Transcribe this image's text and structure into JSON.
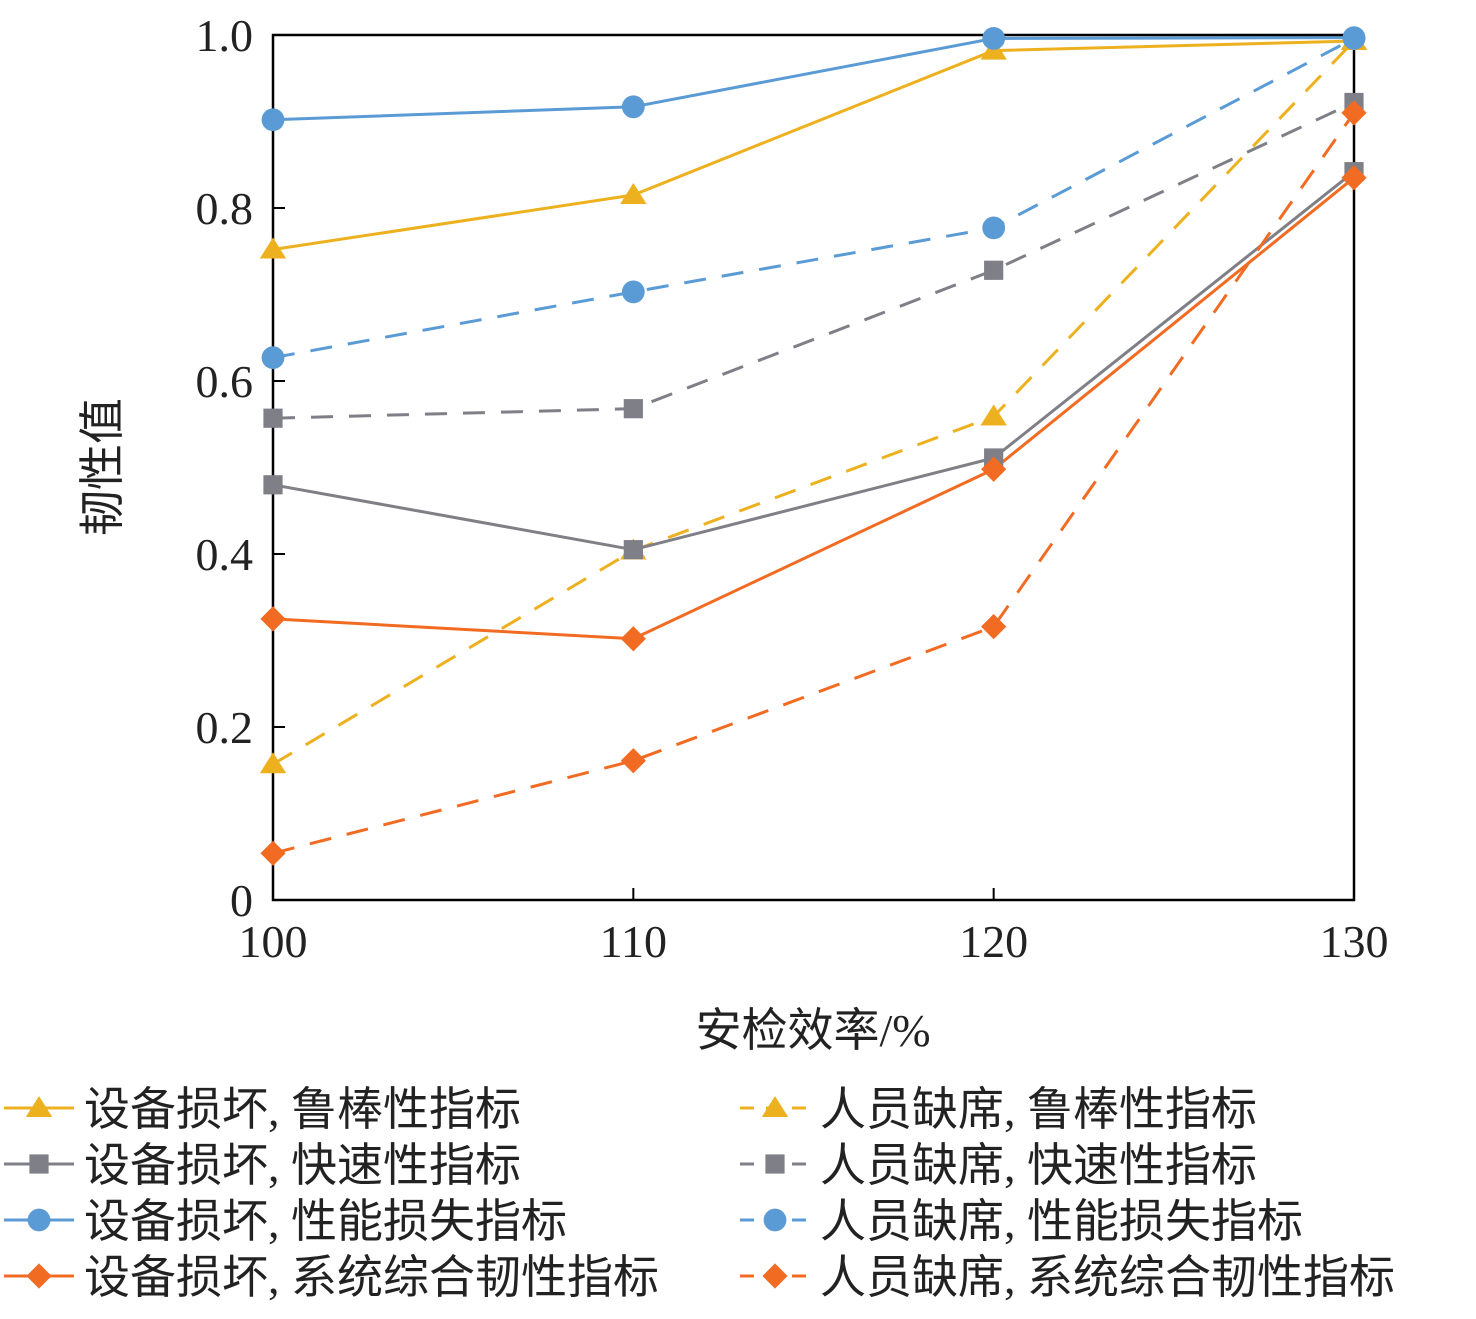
{
  "chart_data": {
    "type": "line",
    "xlabel": "安检效率/%",
    "ylabel": "韧性值",
    "x": [
      100,
      110,
      120,
      130
    ],
    "x_ticks": [
      "100",
      "110",
      "120",
      "130"
    ],
    "xlim": [
      100,
      130
    ],
    "ylim": [
      0,
      1.0
    ],
    "y_ticks": [
      "0",
      "0.2",
      "0.4",
      "0.6",
      "0.8",
      "1.0"
    ],
    "grid": false,
    "legend_position": "bottom",
    "series": [
      {
        "name": "设备损坏, 鲁棒性指标",
        "values": [
          0.752,
          0.815,
          0.982,
          0.993
        ],
        "color": "#EDB120",
        "marker": "triangle",
        "dash": false
      },
      {
        "name": "人员缺席, 鲁棒性指标",
        "values": [
          0.157,
          0.404,
          0.559,
          0.993
        ],
        "color": "#EDB120",
        "marker": "triangle",
        "dash": true
      },
      {
        "name": "设备损坏, 快速性指标",
        "values": [
          0.48,
          0.405,
          0.511,
          0.842
        ],
        "color": "#7F7F87",
        "marker": "square",
        "dash": false
      },
      {
        "name": "人员缺席, 快速性指标",
        "values": [
          0.557,
          0.568,
          0.728,
          0.922
        ],
        "color": "#7F7F87",
        "marker": "square",
        "dash": true
      },
      {
        "name": "设备损坏, 性能损失指标",
        "values": [
          0.902,
          0.917,
          0.996,
          0.997
        ],
        "color": "#5B9BD5",
        "marker": "circle",
        "dash": false
      },
      {
        "name": "人员缺席, 性能损失指标",
        "values": [
          0.627,
          0.703,
          0.777,
          0.996
        ],
        "color": "#5B9BD5",
        "marker": "circle",
        "dash": true
      },
      {
        "name": "设备损坏, 系统综合韧性指标",
        "values": [
          0.325,
          0.302,
          0.498,
          0.835
        ],
        "color": "#F26B22",
        "marker": "diamond",
        "dash": false
      },
      {
        "name": "人员缺席, 系统综合韧性指标",
        "values": [
          0.054,
          0.161,
          0.316,
          0.91
        ],
        "color": "#F26B22",
        "marker": "diamond",
        "dash": true
      }
    ]
  }
}
